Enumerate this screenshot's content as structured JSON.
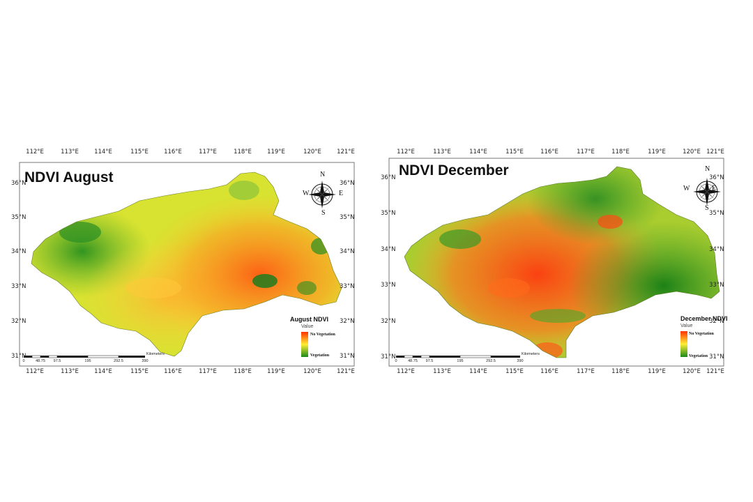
{
  "maps": [
    {
      "title": "NDVI August",
      "lon_labels": [
        "112°E",
        "113°E",
        "114°E",
        "115°E",
        "116°E",
        "117°E",
        "118°E",
        "119°E",
        "120°E",
        "121°E"
      ],
      "lat_labels": [
        "36°N",
        "35°N",
        "34°N",
        "33°N",
        "32°N",
        "31°N"
      ],
      "legend": {
        "title": "August NDVI",
        "subtitle": "Value",
        "high_label": "No Vegetation",
        "low_label": "Vegetation"
      },
      "compass": {
        "n": "N",
        "s": "S",
        "e": "E",
        "w": "W"
      },
      "scale": {
        "ticks": [
          "0",
          "48.75",
          "97.5",
          "195",
          "292.5",
          "390"
        ],
        "unit": "Kilometers"
      },
      "dominant_pattern": "mostly green/yellow with orange in the east"
    },
    {
      "title": "NDVI December",
      "lon_labels": [
        "112°E",
        "113°E",
        "114°E",
        "115°E",
        "116°E",
        "117°E",
        "118°E",
        "119°E",
        "120°E",
        "121°E"
      ],
      "lat_labels": [
        "36°N",
        "35°N",
        "34°N",
        "33°N",
        "32°N",
        "31°N"
      ],
      "legend": {
        "title": "December NDVI",
        "subtitle": "Value",
        "high_label": "No Vegetation",
        "low_label": "Vegetation"
      },
      "compass": {
        "n": "N",
        "s": "S",
        "e": "E",
        "w": "W"
      },
      "scale": {
        "ticks": [
          "0",
          "48.75",
          "97.5",
          "195",
          "292.5",
          "390"
        ],
        "unit": "Kilometers"
      },
      "dominant_pattern": "mostly orange/red in the center with green in the east and north"
    }
  ],
  "colors": {
    "no_vegetation": "#ff3300",
    "mid": "#ffee33",
    "vegetation": "#1a8a1a",
    "frame": "#333333"
  }
}
